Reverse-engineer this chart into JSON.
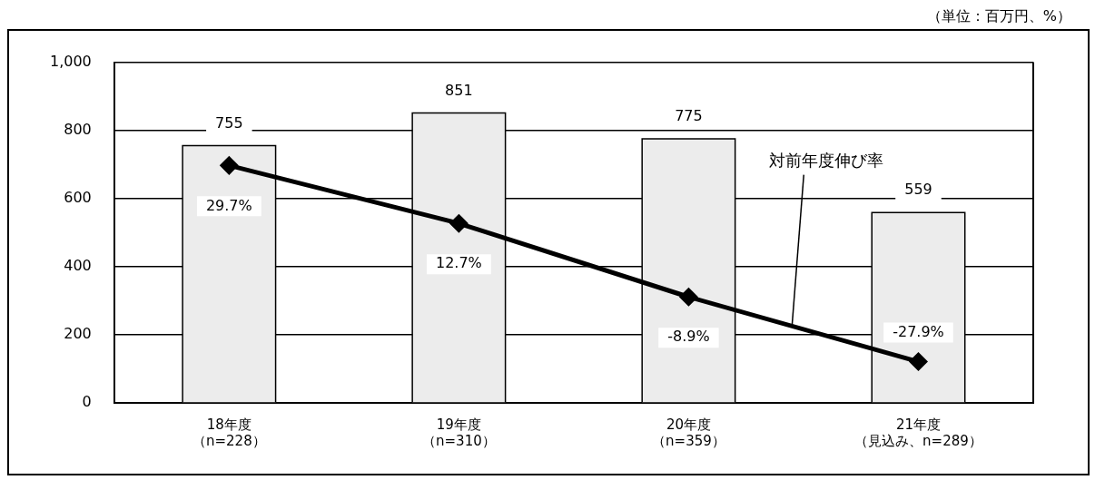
{
  "chart_data": {
    "type": "bar",
    "categories": [
      "18年度（n=228）",
      "19年度（n=310）",
      "20年度（n=359）",
      "21年度（見込み、n=289）"
    ],
    "series": [
      {
        "color": "#ececec",
        "values": [
          755,
          851,
          775,
          559
        ],
        "value_labels": [
          "755",
          "851",
          "775",
          "559"
        ]
      },
      {
        "type": "line",
        "name": "対前年度伸び率",
        "axis": "y2",
        "color": "#000000",
        "marker": "diamond",
        "values": [
          29.7,
          12.7,
          -8.9,
          -27.9
        ],
        "value_labels": [
          "29.7%",
          "12.7%",
          "-8.9%",
          "-27.9%"
        ]
      }
    ],
    "ylim": [
      0,
      1000
    ],
    "yticks": [
      0,
      200,
      400,
      600,
      800,
      {
        "value": 1000,
        "label": "1,000"
      }
    ],
    "y2lim": [
      -40,
      60
    ],
    "grid": "y",
    "annotations": [
      "（単位：百万円、%）"
    ]
  }
}
